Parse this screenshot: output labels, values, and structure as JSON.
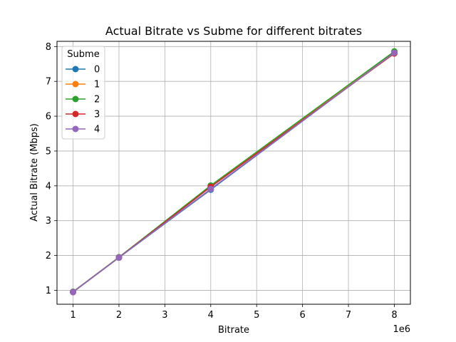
{
  "chart_data": {
    "type": "line",
    "title": "Actual Bitrate vs Subme for different bitrates",
    "xlabel": "Bitrate",
    "ylabel": "Actual Bitrate (Mbps)",
    "x_offset_label": "1e6",
    "x": [
      1000000,
      2000000,
      4000000,
      8000000
    ],
    "xlim": [
      650000,
      8350000
    ],
    "ylim": [
      0.6,
      8.15
    ],
    "x_ticks": [
      1000000,
      2000000,
      3000000,
      4000000,
      5000000,
      6000000,
      7000000,
      8000000
    ],
    "x_tick_labels": [
      "1",
      "2",
      "3",
      "4",
      "5",
      "6",
      "7",
      "8"
    ],
    "y_ticks": [
      1,
      2,
      3,
      4,
      5,
      6,
      7,
      8
    ],
    "y_tick_labels": [
      "1",
      "2",
      "3",
      "4",
      "5",
      "6",
      "7",
      "8"
    ],
    "grid": true,
    "legend": {
      "title": "Subme",
      "placement": "top-left"
    },
    "series": [
      {
        "name": "0",
        "color": "#1f77b4",
        "values": [
          0.95,
          1.94,
          3.89,
          7.83
        ]
      },
      {
        "name": "1",
        "color": "#ff7f0e",
        "values": [
          0.95,
          1.95,
          3.98,
          7.85
        ]
      },
      {
        "name": "2",
        "color": "#2ca02c",
        "values": [
          0.96,
          1.95,
          4.01,
          7.86
        ]
      },
      {
        "name": "3",
        "color": "#d62728",
        "values": [
          0.95,
          1.94,
          3.97,
          7.8
        ]
      },
      {
        "name": "4",
        "color": "#9467bd",
        "values": [
          0.95,
          1.94,
          3.91,
          7.82
        ]
      }
    ]
  }
}
